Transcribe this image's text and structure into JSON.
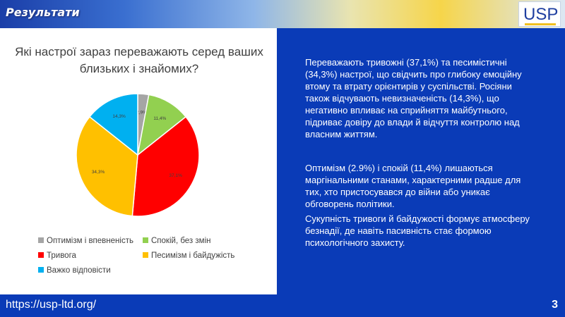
{
  "header": {
    "title": "Результати",
    "logo": "USP"
  },
  "chart_data": {
    "type": "pie",
    "title": "Які настрої зараз переважають серед ваших близьких і знайомих?",
    "categories": [
      "Оптимізм і впевненість",
      "Спокій, без змін",
      "Тривога",
      "Песимізм і байдужість",
      "Важко відповісти"
    ],
    "values": [
      2.9,
      11.4,
      37.1,
      34.3,
      14.3
    ],
    "labels": [
      "2,9%",
      "11,4%",
      "37,1%",
      "34,3%",
      "14,3%"
    ],
    "colors": [
      "#a5a5a5",
      "#92d050",
      "#ff0000",
      "#ffc000",
      "#00b0f0"
    ],
    "legend": "bottom"
  },
  "text": {
    "p1": "Переважають тривожні (37,1%) та песимістичні (34,3%) настрої, що свідчить про глибоку емоційну втому та втрату орієнтирів у суспільстві. Росіяни також відчувають невизначеність (14,3%), що негативно впливає на сприйняття майбутнього, підриває довіру до влади й відчуття контролю над власним життям.",
    "p2": "Оптимізм (2.9%) і спокій (11,4%) лишаються маргінальними станами, характерними радше для тих, хто пристосувався до війни або уникає обговорень політики.",
    "p3": "Сукупність тривоги й байдужості формує атмосферу безнадії, де навіть пасивність стає формою психологічного захисту."
  },
  "footer": {
    "url": "https://usp-ltd.org/",
    "page": "3"
  }
}
